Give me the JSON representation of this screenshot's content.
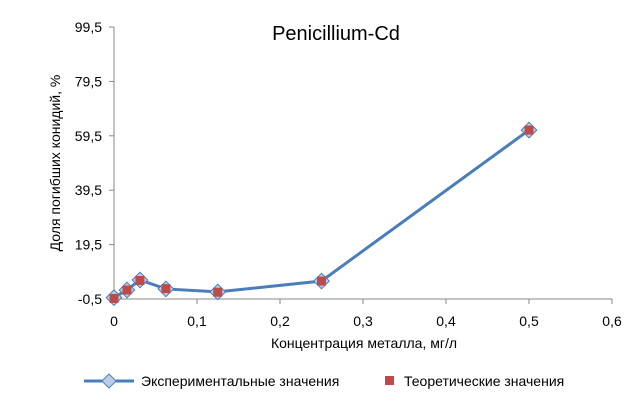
{
  "chart_data": {
    "type": "line",
    "title": "Penicillium-Cd",
    "xlabel": "Концентрация металла, мг/л",
    "ylabel": "Доля погибших конидий, %",
    "xlim": [
      0,
      0.6
    ],
    "ylim": [
      -0.5,
      99.5
    ],
    "xticks": [
      "0",
      "0,1",
      "0,2",
      "0,3",
      "0,4",
      "0,5",
      "0,6"
    ],
    "xtick_values": [
      0,
      0.1,
      0.2,
      0.3,
      0.4,
      0.5,
      0.6
    ],
    "yticks": [
      "-0,5",
      "19,5",
      "39,5",
      "59,5",
      "79,5",
      "99,5"
    ],
    "ytick_values": [
      -0.5,
      19.5,
      39.5,
      59.5,
      79.5,
      99.5
    ],
    "grid": false,
    "legend_position": "bottom",
    "series": [
      {
        "name": "Экспериментальные значения",
        "color": "#4a7ebb",
        "marker": "diamond",
        "x": [
          0,
          0.0156,
          0.03125,
          0.0625,
          0.125,
          0.25,
          0.5
        ],
        "y": [
          0,
          2.8,
          6.5,
          3.2,
          2.1,
          6.1,
          61.6
        ]
      },
      {
        "name": "Теоретические значения",
        "color": "#be4b48",
        "marker": "square",
        "x": [
          0,
          0.0156,
          0.03125,
          0.0625,
          0.125,
          0.25,
          0.5
        ],
        "y": [
          -0.3,
          2.8,
          6.3,
          3.3,
          2.0,
          6.1,
          61.6
        ]
      }
    ]
  }
}
